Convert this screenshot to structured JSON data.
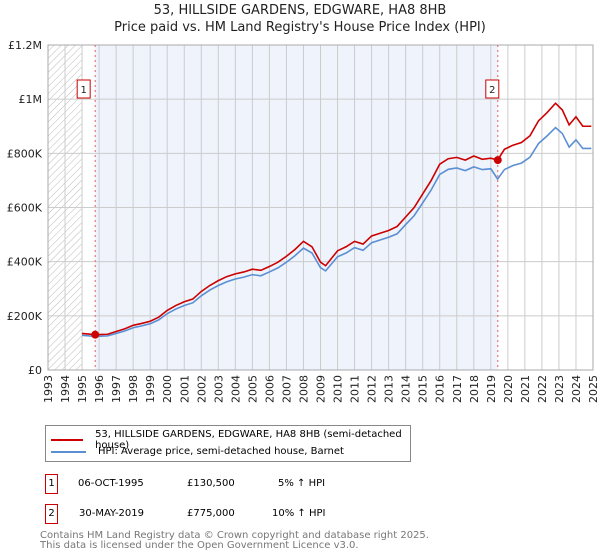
{
  "chart_data": {
    "type": "line",
    "title": "53, HILLSIDE GARDENS, EDGWARE, HA8 8HB",
    "subtitle": "Price paid vs. HM Land Registry's House Price Index (HPI)",
    "xlim": [
      1993,
      2025
    ],
    "ylim": [
      0,
      1200000
    ],
    "x_ticks": [
      "1993",
      "1994",
      "1995",
      "1996",
      "1997",
      "1998",
      "1999",
      "2000",
      "2001",
      "2002",
      "2003",
      "2004",
      "2005",
      "2006",
      "2007",
      "2008",
      "2009",
      "2010",
      "2011",
      "2012",
      "2013",
      "2014",
      "2015",
      "2016",
      "2017",
      "2018",
      "2019",
      "2020",
      "2021",
      "2022",
      "2023",
      "2024",
      "2025"
    ],
    "y_ticks": [
      {
        "v": 0,
        "l": "£0"
      },
      {
        "v": 200000,
        "l": "£200K"
      },
      {
        "v": 400000,
        "l": "£400K"
      },
      {
        "v": 600000,
        "l": "£600K"
      },
      {
        "v": 800000,
        "l": "£800K"
      },
      {
        "v": 1000000,
        "l": "£1M"
      },
      {
        "v": 1200000,
        "l": "£1.2M"
      }
    ],
    "grid": true,
    "series": [
      {
        "name": "53, HILLSIDE GARDENS, EDGWARE, HA8 8HB (semi-detached house)",
        "color": "#cc0000",
        "x": [
          1995.0,
          1995.8,
          1996.5,
          1997,
          1997.5,
          1998,
          1998.5,
          1999,
          1999.5,
          2000,
          2000.5,
          2001,
          2001.5,
          2002,
          2002.5,
          2003,
          2003.5,
          2004,
          2004.5,
          2005,
          2005.5,
          2006,
          2006.5,
          2007,
          2007.5,
          2008,
          2008.5,
          2009,
          2009.3,
          2010,
          2010.5,
          2011,
          2011.5,
          2012,
          2012.5,
          2013,
          2013.5,
          2014,
          2014.5,
          2015,
          2015.5,
          2016,
          2016.5,
          2017,
          2017.5,
          2018,
          2018.5,
          2019,
          2019.4,
          2019.8,
          2020.3,
          2020.8,
          2021.3,
          2021.8,
          2022.3,
          2022.8,
          2023.2,
          2023.6,
          2024,
          2024.4,
          2024.9
        ],
        "y": [
          135000,
          130500,
          132000,
          142000,
          152000,
          165000,
          172000,
          180000,
          195000,
          220000,
          238000,
          252000,
          262000,
          290000,
          312000,
          330000,
          345000,
          355000,
          362000,
          372000,
          368000,
          382000,
          398000,
          420000,
          445000,
          475000,
          455000,
          398000,
          385000,
          440000,
          455000,
          475000,
          465000,
          495000,
          505000,
          515000,
          530000,
          565000,
          600000,
          650000,
          700000,
          760000,
          780000,
          785000,
          775000,
          790000,
          778000,
          782000,
          775000,
          815000,
          830000,
          840000,
          865000,
          920000,
          950000,
          985000,
          960000,
          905000,
          935000,
          900000,
          900000
        ]
      },
      {
        "name": "HPI: Average price, semi-detached house, Barnet",
        "color": "#5b8fd4",
        "x": [
          1995.0,
          1995.8,
          1996.5,
          1997,
          1997.5,
          1998,
          1998.5,
          1999,
          1999.5,
          2000,
          2000.5,
          2001,
          2001.5,
          2002,
          2002.5,
          2003,
          2003.5,
          2004,
          2004.5,
          2005,
          2005.5,
          2006,
          2006.5,
          2007,
          2007.5,
          2008,
          2008.5,
          2009,
          2009.3,
          2010,
          2010.5,
          2011,
          2011.5,
          2012,
          2012.5,
          2013,
          2013.5,
          2014,
          2014.5,
          2015,
          2015.5,
          2016,
          2016.5,
          2017,
          2017.5,
          2018,
          2018.5,
          2019,
          2019.4,
          2019.8,
          2020.3,
          2020.8,
          2021.3,
          2021.8,
          2022.3,
          2022.8,
          2023.2,
          2023.6,
          2024,
          2024.4,
          2024.9
        ],
        "y": [
          128000,
          124000,
          126000,
          135000,
          144000,
          156000,
          163000,
          171000,
          185000,
          208000,
          225000,
          238000,
          248000,
          274000,
          295000,
          312000,
          326000,
          336000,
          343000,
          352000,
          348000,
          362000,
          377000,
          398000,
          422000,
          450000,
          432000,
          378000,
          366000,
          418000,
          432000,
          452000,
          442000,
          470000,
          480000,
          490000,
          503000,
          537000,
          570000,
          617000,
          665000,
          722000,
          741000,
          746000,
          736000,
          750000,
          740000,
          743000,
          705000,
          740000,
          755000,
          764000,
          786000,
          836000,
          864000,
          895000,
          873000,
          823000,
          850000,
          818000,
          818000
        ]
      }
    ],
    "annotations": [
      {
        "label": "1",
        "x": 1995.77,
        "y": 130500
      },
      {
        "label": "2",
        "x": 2019.41,
        "y": 775000
      }
    ],
    "shaded_span": [
      1995.77,
      2019.41
    ],
    "hatched_span": [
      1993,
      1995
    ]
  },
  "legend": {
    "items": [
      "53, HILLSIDE GARDENS, EDGWARE, HA8 8HB (semi-detached house)",
      "HPI: Average price, semi-detached house, Barnet"
    ]
  },
  "transactions": [
    {
      "num": "1",
      "date": "06-OCT-1995",
      "price": "£130,500",
      "hpi": "5% ↑ HPI"
    },
    {
      "num": "2",
      "date": "30-MAY-2019",
      "price": "£775,000",
      "hpi": "10% ↑ HPI"
    }
  ],
  "footer": {
    "line1": "Contains HM Land Registry data © Crown copyright and database right 2025.",
    "line2": "This data is licensed under the Open Government Licence v3.0."
  }
}
